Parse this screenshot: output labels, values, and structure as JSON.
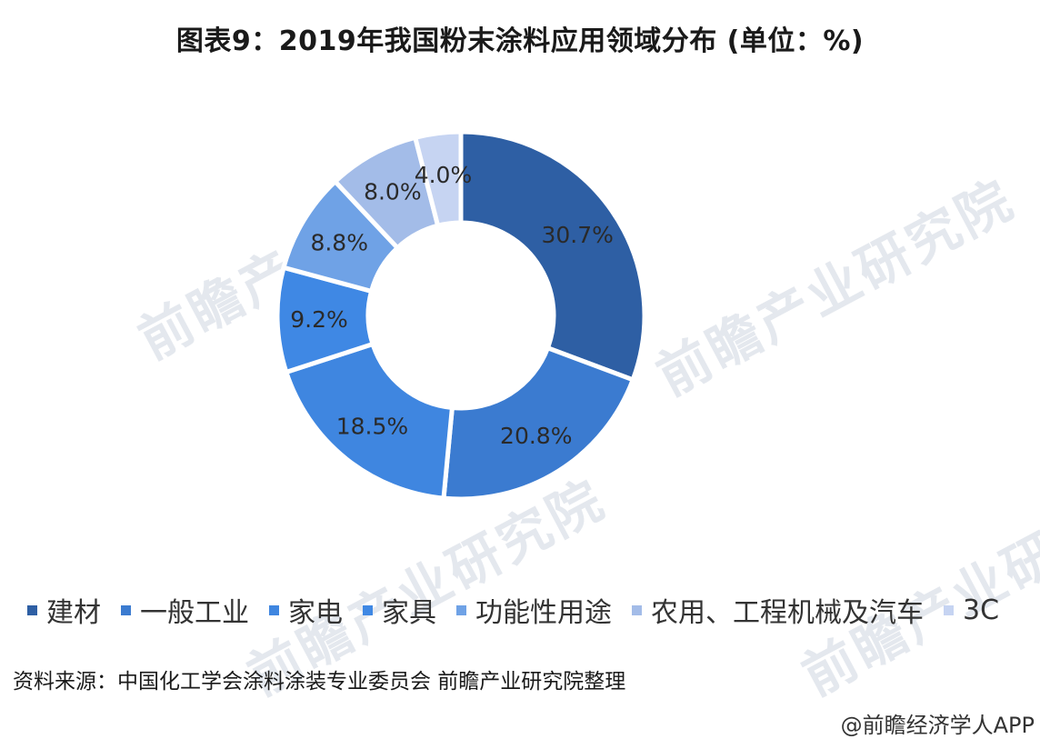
{
  "chart_data": {
    "type": "pie",
    "title": "图表9：2019年我国粉末涂料应用领域分布 (单位：%)",
    "categories": [
      "建材",
      "一般工业",
      "家电",
      "家具",
      "功能性用途",
      "农用、工程机械及汽车",
      "3C"
    ],
    "values": [
      30.7,
      20.8,
      18.5,
      9.2,
      8.8,
      8.0,
      4.0
    ],
    "data_labels": [
      "30.7%",
      "20.8%",
      "18.5%",
      "9.2%",
      "8.8%",
      "8.0%",
      "4.0%"
    ],
    "colors": [
      "#2e5fa4",
      "#3b7bd0",
      "#3f86e0",
      "#3f88e4",
      "#6fa2e6",
      "#a3bce8",
      "#c6d4f2"
    ],
    "legend_placement": "bottom"
  },
  "source": "资料来源：中国化工学会涂料涂装专业委员会 前瞻产业研究院整理",
  "credit": "@前瞻经济学人APP",
  "watermark": "前瞻产业研究院"
}
